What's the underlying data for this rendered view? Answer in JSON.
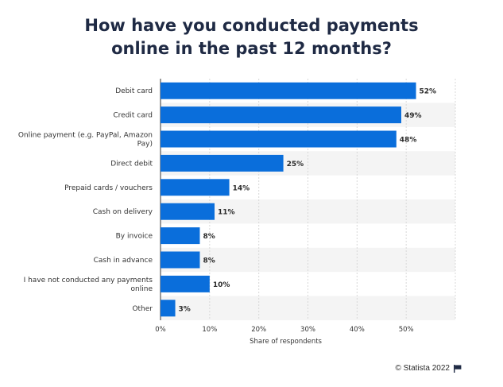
{
  "header": {
    "title_line1": "How have you conducted payments",
    "title_line2": "online in the past 12 months?"
  },
  "footer": {
    "credit": "© Statista 2022"
  },
  "colors": {
    "bar": "#0a6edb",
    "band": "#f4f4f4",
    "grid": "#d8d8d8",
    "title": "#1f2a44",
    "text": "#333333"
  },
  "chart_data": {
    "type": "bar",
    "orientation": "horizontal",
    "categories": [
      [
        "Debit card"
      ],
      [
        "Credit card"
      ],
      [
        "Online payment (e.g. PayPal, Amazon",
        "Pay)"
      ],
      [
        "Direct debit"
      ],
      [
        "Prepaid cards / vouchers"
      ],
      [
        "Cash on delivery"
      ],
      [
        "By invoice"
      ],
      [
        "Cash in advance"
      ],
      [
        "I have not conducted any payments",
        "online"
      ],
      [
        "Other"
      ]
    ],
    "values": [
      52,
      49,
      48,
      25,
      14,
      11,
      8,
      8,
      10,
      3
    ],
    "value_labels": [
      "52%",
      "49%",
      "48%",
      "25%",
      "14%",
      "11%",
      "8%",
      "8%",
      "10%",
      "3%"
    ],
    "xlabel": "Share of respondents",
    "xlim": [
      0,
      60
    ],
    "xticks": [
      0,
      10,
      20,
      30,
      40,
      50
    ],
    "xtick_labels": [
      "0%",
      "10%",
      "20%",
      "30%",
      "40%",
      "50%"
    ],
    "grid": true
  }
}
